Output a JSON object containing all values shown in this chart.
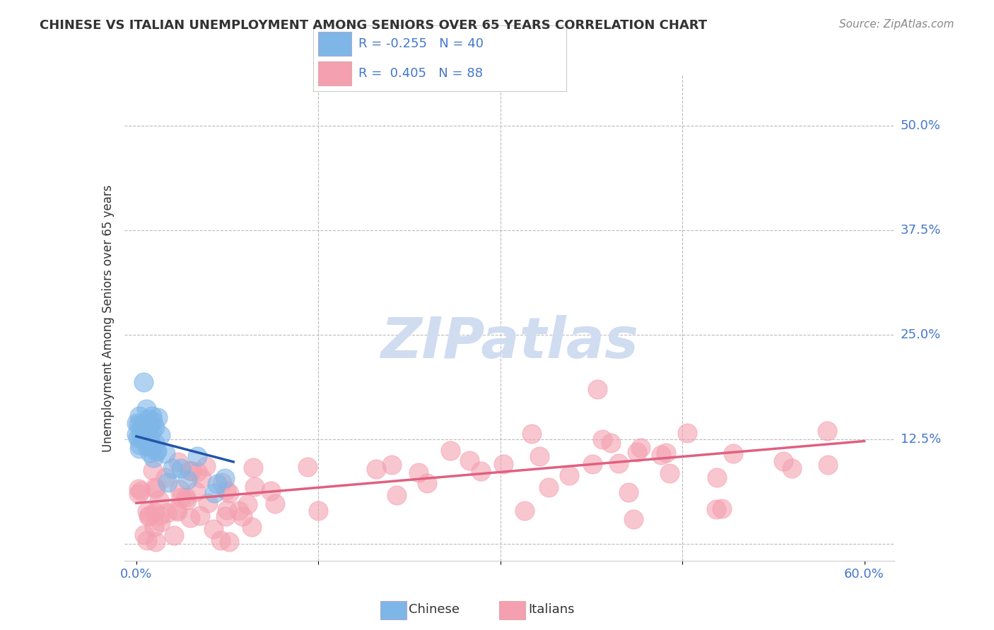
{
  "title": "CHINESE VS ITALIAN UNEMPLOYMENT AMONG SENIORS OVER 65 YEARS CORRELATION CHART",
  "source": "Source: ZipAtlas.com",
  "ylabel": "Unemployment Among Seniors over 65 years",
  "xlim": [
    -0.01,
    0.625
  ],
  "ylim": [
    -0.02,
    0.56
  ],
  "xtick_positions": [
    0.0,
    0.15,
    0.3,
    0.45,
    0.6
  ],
  "xticklabels": [
    "0.0%",
    "",
    "",
    "",
    "60.0%"
  ],
  "ytick_vals_right": [
    0.5,
    0.375,
    0.25,
    0.125
  ],
  "ytick_labels_right": [
    "50.0%",
    "37.5%",
    "25.0%",
    "12.5%"
  ],
  "legend_chinese": "R = -0.255   N = 40",
  "legend_italians": "R =  0.405   N = 88",
  "chinese_color": "#7EB6E8",
  "italian_color": "#F4A0B0",
  "chinese_line_color": "#2255AA",
  "italian_line_color": "#E06080",
  "watermark_color": "#D0DCF0",
  "background_color": "#FFFFFF",
  "tick_color": "#4477CC",
  "grid_color": "#BBBBBB",
  "text_color": "#333333",
  "source_color": "#888888"
}
